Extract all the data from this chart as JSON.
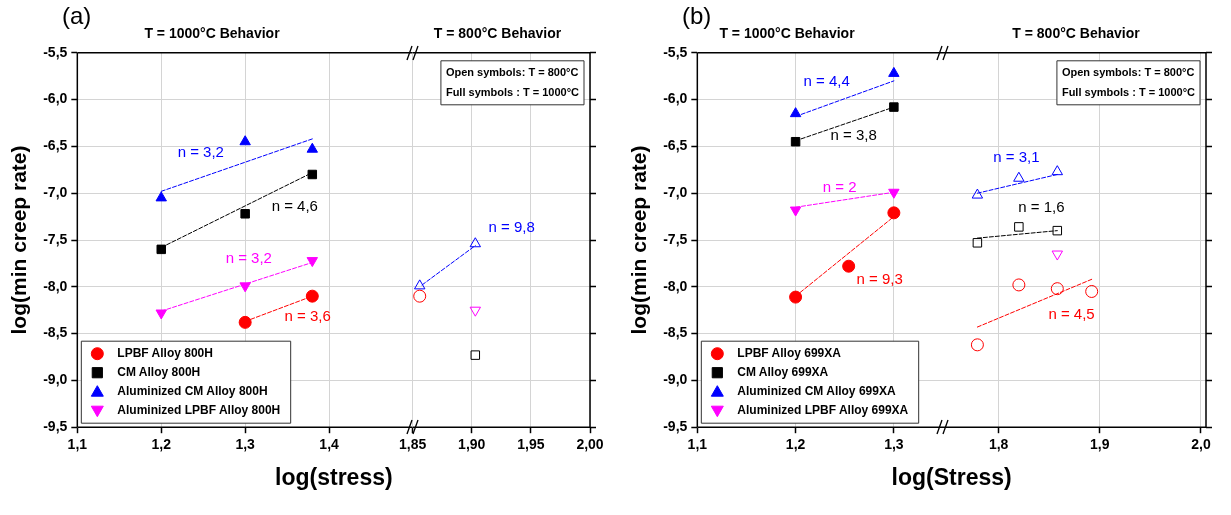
{
  "chart_data": [
    {
      "type": "scatter",
      "title": "T = 1000°C Behavior",
      "xlabel": "log(stress)",
      "ylabel": "log(min creep rate)",
      "xlim": [
        1.1,
        1.5
      ],
      "xticks": [
        {
          "value": 1.1,
          "label": "1,1"
        },
        {
          "value": 1.2,
          "label": "1,2"
        },
        {
          "value": 1.3,
          "label": "1,3"
        },
        {
          "value": 1.4,
          "label": "1,4"
        }
      ],
      "ylim": [
        -9.5,
        -5.5
      ],
      "yticks": [
        {
          "value": -9.5,
          "label": "-9,5"
        },
        {
          "value": -9,
          "label": "-9,0"
        },
        {
          "value": -8.5,
          "label": "-8,5"
        },
        {
          "value": -8,
          "label": "-8,0"
        },
        {
          "value": -7.5,
          "label": "-7,5"
        },
        {
          "value": -7,
          "label": "-7,0"
        },
        {
          "value": -6.5,
          "label": "-6,5"
        },
        {
          "value": -6,
          "label": "-6,0"
        },
        {
          "value": -5.5,
          "label": "-5,5"
        }
      ],
      "grid": true,
      "legend": "bottom left",
      "line_style": "dashed",
      "annotations": [
        "(a)",
        "n = 3,6",
        "n = 4,6",
        "n = 3,2",
        "n = 3,2"
      ],
      "series": [
        {
          "name": "LPBF Alloy 800H",
          "color": "#ff0000",
          "marker": "circle",
          "x": [
            1.3,
            1.38
          ],
          "values": [
            -8.38,
            -8.1
          ]
        },
        {
          "name": "CM Alloy 800H",
          "color": "#000000",
          "marker": "square",
          "x": [
            1.2,
            1.3,
            1.38
          ],
          "values": [
            -7.6,
            -7.22,
            -6.8
          ]
        },
        {
          "name": "Aluminized CM Alloy 800H",
          "color": "#0000ff",
          "marker": "triangle",
          "x": [
            1.2,
            1.3,
            1.38
          ],
          "values": [
            -7.05,
            -6.45,
            -6.53
          ]
        },
        {
          "name": "Aluminized LPBF Alloy 800H",
          "color": "#ff00ff",
          "marker": "triangle-down",
          "x": [
            1.2,
            1.3,
            1.38
          ],
          "values": [
            -8.28,
            -7.99,
            -7.72
          ]
        },
        {
          "type": "line",
          "color": "#ff0000",
          "marker": "none",
          "x": [
            1.3,
            1.38
          ],
          "values": [
            -8.37,
            -8.1
          ]
        },
        {
          "type": "line",
          "color": "#000000",
          "marker": "none",
          "x": [
            1.2,
            1.38
          ],
          "values": [
            -7.58,
            -6.78
          ]
        },
        {
          "type": "line",
          "color": "#0000ff",
          "marker": "none",
          "x": [
            1.2,
            1.38
          ],
          "values": [
            -6.98,
            -6.42
          ]
        },
        {
          "type": "line",
          "color": "#ff00ff",
          "marker": "none",
          "x": [
            1.2,
            1.38
          ],
          "values": [
            -8.26,
            -7.74
          ]
        }
      ]
    },
    {
      "type": "scatter",
      "title": "T = 800°C Behavior",
      "xlim": [
        1.85,
        2.0
      ],
      "xticks": [
        {
          "value": 1.85,
          "label": "1,85"
        },
        {
          "value": 1.9,
          "label": "1,90"
        },
        {
          "value": 1.95,
          "label": "1,95"
        },
        {
          "value": 2.0,
          "label": "2,00"
        }
      ],
      "ylim": [
        -9.5,
        -5.5
      ],
      "yticks": [
        {
          "value": -9.5,
          "label": null
        },
        {
          "value": -9,
          "label": null
        },
        {
          "value": -8.5,
          "label": null
        },
        {
          "value": -8,
          "label": null
        },
        {
          "value": -7.5,
          "label": null
        },
        {
          "value": -7,
          "label": null
        },
        {
          "value": -6.5,
          "label": null
        },
        {
          "value": -6,
          "label": null
        },
        {
          "value": -5.5,
          "label": null
        }
      ],
      "grid": true,
      "tick_labels": "x",
      "line_style": "dashed",
      "annotations": [
        "Open symbols: T = 800°C",
        "Full symbols : T = 1000°C",
        "n = 9,8"
      ],
      "series": [
        {
          "color": "#ff0000",
          "marker": "circle",
          "x": [
            1.856
          ],
          "values": [
            -8.1
          ]
        },
        {
          "color": "#000000",
          "marker": "square",
          "x": [
            1.903
          ],
          "values": [
            -8.73
          ]
        },
        {
          "color": "#0000ff",
          "marker": "triangle",
          "x": [
            1.856,
            1.903
          ],
          "values": [
            -7.99,
            -7.54
          ]
        },
        {
          "color": "#ff00ff",
          "marker": "triangle-down",
          "x": [
            1.903
          ],
          "values": [
            -8.25
          ]
        },
        {
          "type": "line",
          "color": "#0000ff",
          "marker": "none",
          "x": [
            1.858,
            1.903
          ],
          "values": [
            -7.98,
            -7.56
          ]
        }
      ]
    },
    {
      "type": "scatter",
      "title": "T = 1000°C Behavior",
      "xlabel": "log(Stress)",
      "ylabel": "log(min creep rate)",
      "xlim": [
        1.1,
        1.35
      ],
      "xticks": [
        {
          "value": 1.1,
          "label": "1,1"
        },
        {
          "value": 1.2,
          "label": "1,2"
        },
        {
          "value": 1.3,
          "label": "1,3"
        }
      ],
      "ylim": [
        -9.5,
        -5.5
      ],
      "yticks": [
        {
          "value": -9.5,
          "label": "-9,5"
        },
        {
          "value": -9,
          "label": "-9,0"
        },
        {
          "value": -8.5,
          "label": "-8,5"
        },
        {
          "value": -8,
          "label": "-8,0"
        },
        {
          "value": -7.5,
          "label": "-7,5"
        },
        {
          "value": -7,
          "label": "-7,0"
        },
        {
          "value": -6.5,
          "label": "-6,5"
        },
        {
          "value": -6,
          "label": "-6,0"
        },
        {
          "value": -5.5,
          "label": "-5,5"
        }
      ],
      "grid": true,
      "legend": "bottom left",
      "line_style": "dashed",
      "annotations": [
        "(b)",
        "n = 9,3",
        "n = 3,8",
        "n = 4,4",
        "n = 2"
      ],
      "series": [
        {
          "name": "LPBF Alloy 699XA",
          "color": "#ff0000",
          "marker": "circle",
          "x": [
            1.2,
            1.254,
            1.3
          ],
          "values": [
            -8.11,
            -7.78,
            -7.21
          ]
        },
        {
          "name": "CM Alloy 699XA",
          "color": "#000000",
          "marker": "square",
          "x": [
            1.2,
            1.3
          ],
          "values": [
            -6.45,
            -6.08
          ]
        },
        {
          "name": "Aluminized CM Alloy 699XA",
          "color": "#0000ff",
          "marker": "triangle",
          "x": [
            1.2,
            1.3
          ],
          "values": [
            -6.15,
            -5.72
          ]
        },
        {
          "name": "Aluminized LPBF Alloy 699XA",
          "color": "#ff00ff",
          "marker": "triangle-down",
          "x": [
            1.2,
            1.3
          ],
          "values": [
            -7.18,
            -6.99
          ]
        },
        {
          "type": "line",
          "color": "#ff0000",
          "marker": "none",
          "x": [
            1.2,
            1.3
          ],
          "values": [
            -8.1,
            -7.25
          ]
        },
        {
          "type": "line",
          "color": "#000000",
          "marker": "none",
          "x": [
            1.2,
            1.3
          ],
          "values": [
            -6.44,
            -6.08
          ]
        },
        {
          "type": "line",
          "color": "#0000ff",
          "marker": "none",
          "x": [
            1.2,
            1.3
          ],
          "values": [
            -6.18,
            -5.8
          ]
        },
        {
          "type": "line",
          "color": "#ff00ff",
          "marker": "none",
          "x": [
            1.2,
            1.3
          ],
          "values": [
            -7.15,
            -6.99
          ]
        }
      ]
    },
    {
      "type": "scatter",
      "title": "T = 800°C Behavior",
      "xlim": [
        1.745,
        2.005
      ],
      "xticks": [
        {
          "value": 1.8,
          "label": "1,8"
        },
        {
          "value": 1.9,
          "label": "1,9"
        },
        {
          "value": 2.0,
          "label": "2,0"
        }
      ],
      "ylim": [
        -9.5,
        -5.5
      ],
      "yticks": [
        {
          "value": -9.5,
          "label": null
        },
        {
          "value": -9,
          "label": null
        },
        {
          "value": -8.5,
          "label": null
        },
        {
          "value": -8,
          "label": null
        },
        {
          "value": -7.5,
          "label": null
        },
        {
          "value": -7,
          "label": null
        },
        {
          "value": -6.5,
          "label": null
        },
        {
          "value": -6,
          "label": null
        },
        {
          "value": -5.5,
          "label": null
        }
      ],
      "grid": true,
      "tick_labels": "x",
      "line_style": "dashed",
      "annotations": [
        "Open symbols: T = 800°C",
        "Full symbols : T = 1000°C",
        "n = 4,5",
        "n = 1,6",
        "n = 3,1"
      ],
      "series": [
        {
          "color": "#ff0000",
          "marker": "circle",
          "x": [
            1.779,
            1.82,
            1.858,
            1.892
          ],
          "values": [
            -8.62,
            -7.98,
            -8.02,
            -8.05
          ]
        },
        {
          "color": "#000000",
          "marker": "square",
          "x": [
            1.779,
            1.82,
            1.858
          ],
          "values": [
            -7.53,
            -7.36,
            -7.4
          ]
        },
        {
          "color": "#0000ff",
          "marker": "triangle",
          "x": [
            1.779,
            1.82,
            1.858
          ],
          "values": [
            -7.02,
            -6.84,
            -6.77
          ]
        },
        {
          "color": "#ff00ff",
          "marker": "triangle-down",
          "x": [
            1.858
          ],
          "values": [
            -7.65
          ]
        },
        {
          "type": "line",
          "color": "#ff0000",
          "marker": "none",
          "x": [
            1.779,
            1.892
          ],
          "values": [
            -8.43,
            -7.92
          ]
        },
        {
          "type": "line",
          "color": "#000000",
          "marker": "none",
          "x": [
            1.779,
            1.858
          ],
          "values": [
            -7.48,
            -7.4
          ]
        },
        {
          "type": "line",
          "color": "#0000ff",
          "marker": "none",
          "x": [
            1.779,
            1.858
          ],
          "values": [
            -7.0,
            -6.8
          ]
        }
      ]
    }
  ]
}
